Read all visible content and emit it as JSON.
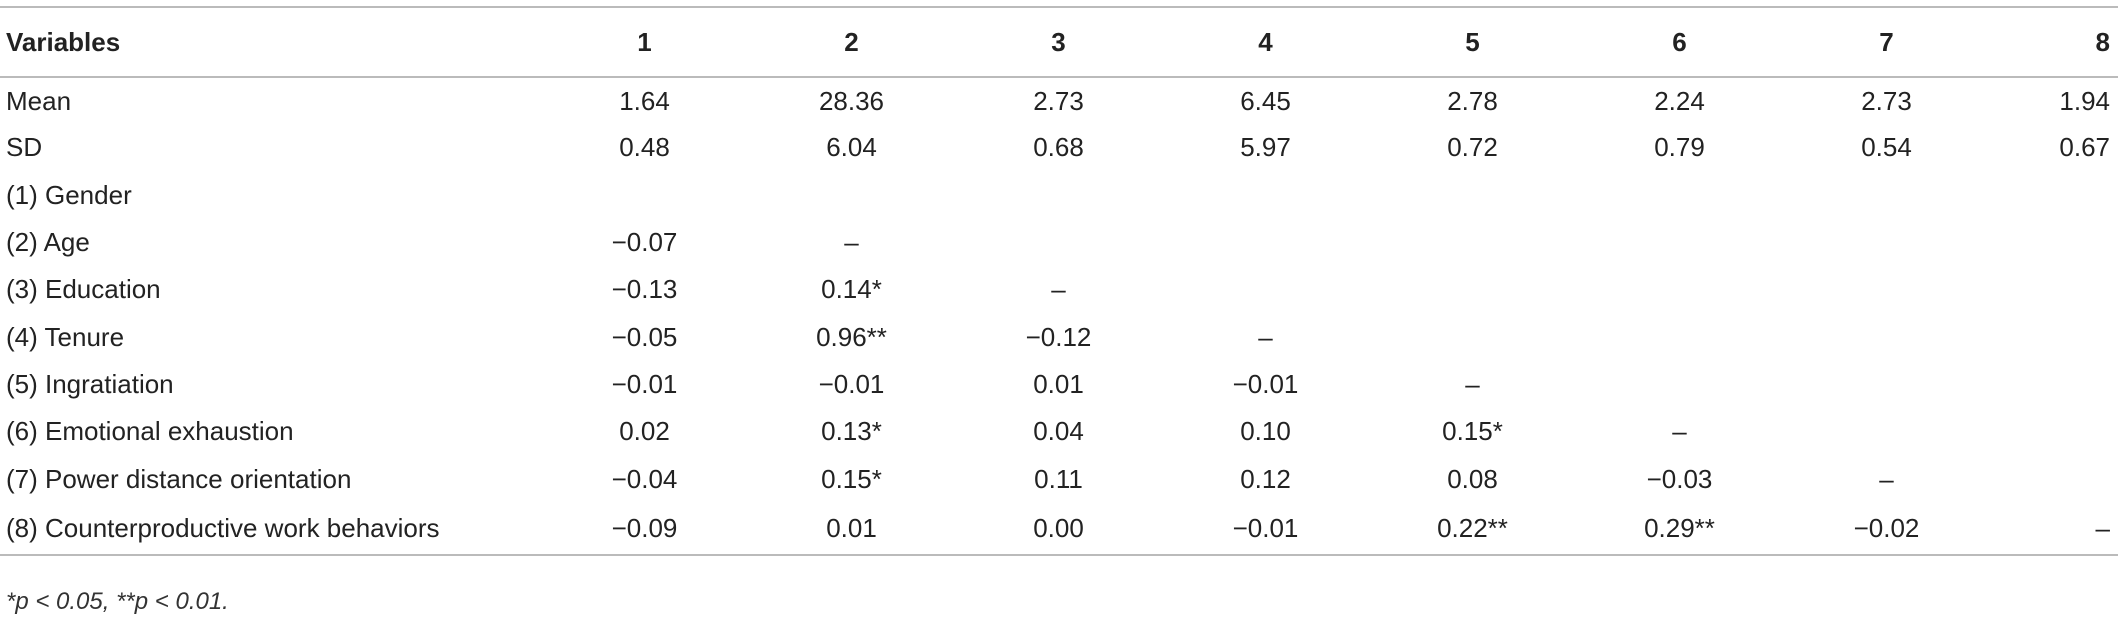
{
  "table": {
    "header": [
      "Variables",
      "1",
      "2",
      "3",
      "4",
      "5",
      "6",
      "7",
      "8"
    ],
    "rows": [
      [
        "Mean",
        "1.64",
        "28.36",
        "2.73",
        "6.45",
        "2.78",
        "2.24",
        "2.73",
        "1.94"
      ],
      [
        "SD",
        "0.48",
        "6.04",
        "0.68",
        "5.97",
        "0.72",
        "0.79",
        "0.54",
        "0.67"
      ],
      [
        "(1) Gender"
      ],
      [
        "(2) Age",
        "−0.07",
        "–"
      ],
      [
        "(3) Education",
        "−0.13",
        "0.14*",
        "–"
      ],
      [
        "(4) Tenure",
        "−0.05",
        "0.96**",
        "−0.12",
        "–"
      ],
      [
        "(5) Ingratiation",
        "−0.01",
        "−0.01",
        "0.01",
        "−0.01",
        "–"
      ],
      [
        "(6) Emotional exhaustion",
        "0.02",
        "0.13*",
        "0.04",
        "0.10",
        "0.15*",
        "–"
      ],
      [
        "(7) Power distance orientation",
        "−0.04",
        "0.15*",
        "0.11",
        "0.12",
        "0.08",
        "−0.03",
        "–"
      ],
      [
        "(8) Counterproductive work behaviors",
        "−0.09",
        "0.01",
        "0.00",
        "−0.01",
        "0.22**",
        "0.29**",
        "−0.02",
        "–"
      ]
    ],
    "footnote": "*p < 0.05, **p < 0.01."
  }
}
